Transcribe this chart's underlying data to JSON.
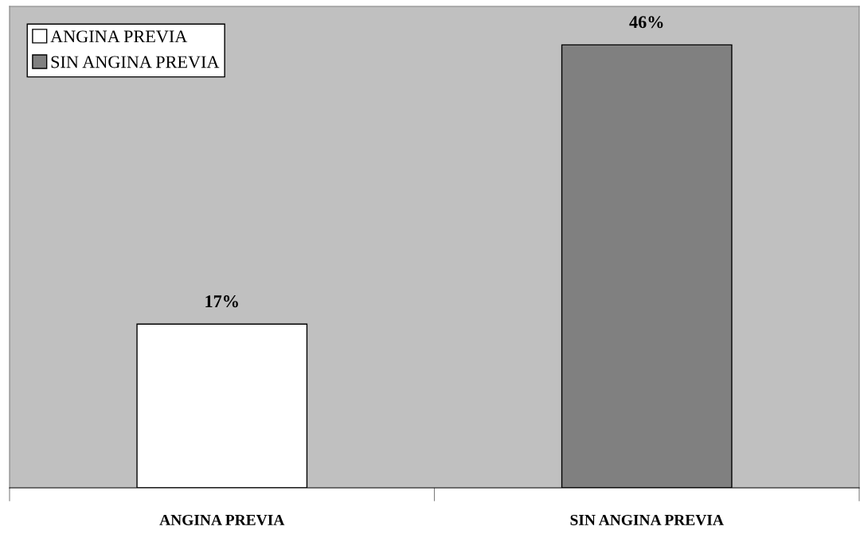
{
  "chart_data": {
    "type": "bar",
    "categories": [
      "ANGINA PREVIA",
      "SIN ANGINA PREVIA"
    ],
    "series": [
      {
        "name": "ANGINA PREVIA",
        "color": "#ffffff",
        "values": [
          17,
          null
        ],
        "value_labels": [
          "17%",
          null
        ]
      },
      {
        "name": "SIN ANGINA PREVIA",
        "color": "#808080",
        "values": [
          null,
          46
        ],
        "value_labels": [
          null,
          "46%"
        ]
      }
    ],
    "ylim": [
      0,
      50
    ],
    "legend": "top left",
    "grid": false
  }
}
